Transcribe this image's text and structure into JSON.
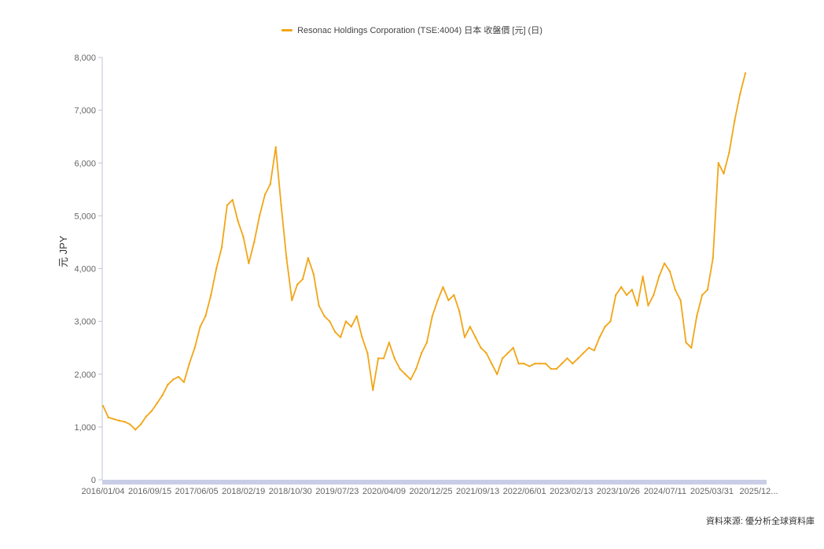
{
  "legend": {
    "label": "Resonac Holdings Corporation (TSE:4004) 日本 收盤價 [元] (日)"
  },
  "source": "資料來源: 優分析全球資料庫",
  "colors": {
    "line": "#F2A516",
    "axis_bar": "#C9CEE6",
    "tick_text": "#666666"
  },
  "chart_data": {
    "type": "line",
    "title": "",
    "xlabel": "",
    "ylabel": "元 JPY",
    "ylim": [
      0,
      8000
    ],
    "grid": false,
    "legend_position": "top-center",
    "y_ticks": [
      "0",
      "1,000",
      "2,000",
      "3,000",
      "4,000",
      "5,000",
      "6,000",
      "7,000",
      "8,000"
    ],
    "y_tick_values": [
      0,
      1000,
      2000,
      3000,
      4000,
      5000,
      6000,
      7000,
      8000
    ],
    "x_ticks": [
      "2016/01/04",
      "2016/09/15",
      "2017/06/05",
      "2018/02/19",
      "2018/10/30",
      "2019/07/23",
      "2020/04/09",
      "2020/12/25",
      "2021/09/13",
      "2022/06/01",
      "2023/02/13",
      "2023/10/26",
      "2024/07/11",
      "2025/03/31",
      "2025/12..."
    ],
    "series": [
      {
        "name": "Resonac Holdings Corporation (TSE:4004) 日本 收盤價 [元] (日)",
        "x": [
          "2016/01",
          "2016/02",
          "2016/03",
          "2016/04",
          "2016/05",
          "2016/06",
          "2016/07",
          "2016/08",
          "2016/09",
          "2016/10",
          "2016/11",
          "2016/12",
          "2017/01",
          "2017/02",
          "2017/03",
          "2017/04",
          "2017/05",
          "2017/06",
          "2017/07",
          "2017/08",
          "2017/09",
          "2017/10",
          "2017/11",
          "2017/12",
          "2018/01",
          "2018/02",
          "2018/03",
          "2018/04",
          "2018/05",
          "2018/06",
          "2018/07",
          "2018/08",
          "2018/09",
          "2018/10",
          "2018/11",
          "2018/12",
          "2019/01",
          "2019/02",
          "2019/03",
          "2019/04",
          "2019/05",
          "2019/06",
          "2019/07",
          "2019/08",
          "2019/09",
          "2019/10",
          "2019/11",
          "2019/12",
          "2020/01",
          "2020/02",
          "2020/03",
          "2020/04",
          "2020/05",
          "2020/06",
          "2020/07",
          "2020/08",
          "2020/09",
          "2020/10",
          "2020/11",
          "2020/12",
          "2021/01",
          "2021/02",
          "2021/03",
          "2021/04",
          "2021/05",
          "2021/06",
          "2021/07",
          "2021/08",
          "2021/09",
          "2021/10",
          "2021/11",
          "2021/12",
          "2022/01",
          "2022/02",
          "2022/03",
          "2022/04",
          "2022/05",
          "2022/06",
          "2022/07",
          "2022/08",
          "2022/09",
          "2022/10",
          "2022/11",
          "2022/12",
          "2023/01",
          "2023/02",
          "2023/03",
          "2023/04",
          "2023/05",
          "2023/06",
          "2023/07",
          "2023/08",
          "2023/09",
          "2023/10",
          "2023/11",
          "2023/12",
          "2024/01",
          "2024/02",
          "2024/03",
          "2024/04",
          "2024/05",
          "2024/06",
          "2024/07",
          "2024/08",
          "2024/09",
          "2024/10",
          "2024/11",
          "2024/12",
          "2025/01",
          "2025/02",
          "2025/03",
          "2025/04",
          "2025/05",
          "2025/06",
          "2025/07",
          "2025/08",
          "2025/09",
          "2025/10",
          "2025/11",
          "2025/12"
        ],
        "values": [
          1400,
          1180,
          1150,
          1120,
          1100,
          1050,
          950,
          1050,
          1200,
          1300,
          1450,
          1600,
          1800,
          1900,
          1950,
          1850,
          2200,
          2500,
          2900,
          3100,
          3500,
          4000,
          4400,
          5200,
          5300,
          4900,
          4600,
          4100,
          4500,
          5000,
          5400,
          5600,
          6300,
          5200,
          4200,
          3400,
          3700,
          3800,
          4200,
          3900,
          3300,
          3100,
          3000,
          2800,
          2700,
          3000,
          2900,
          3100,
          2700,
          2400,
          1700,
          2300,
          2300,
          2600,
          2300,
          2100,
          2000,
          1900,
          2100,
          2400,
          2600,
          3100,
          3400,
          3650,
          3400,
          3500,
          3200,
          2700,
          2900,
          2700,
          2500,
          2400,
          2200,
          2000,
          2300,
          2400,
          2500,
          2200,
          2200,
          2150,
          2200,
          2200,
          2200,
          2100,
          2100,
          2200,
          2300,
          2200,
          2300,
          2400,
          2500,
          2450,
          2700,
          2900,
          3000,
          3500,
          3650,
          3500,
          3600,
          3300,
          3850,
          3300,
          3500,
          3850,
          4100,
          3950,
          3600,
          3400,
          2600,
          2500,
          3100,
          3500,
          3600,
          4200,
          6000,
          5800,
          6200,
          6800,
          7300,
          7700
        ]
      }
    ]
  }
}
